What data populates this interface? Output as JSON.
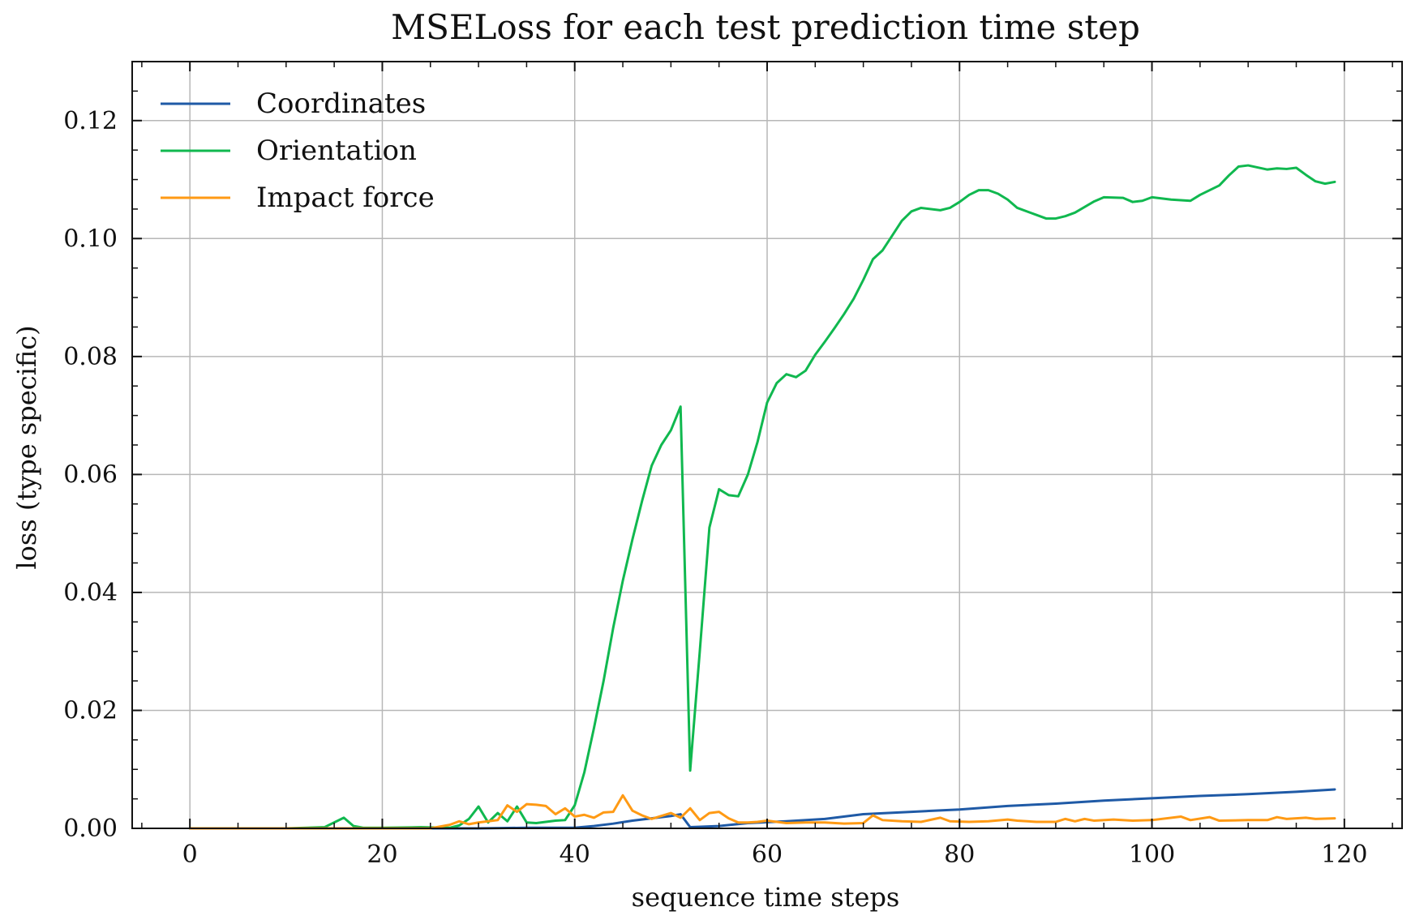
{
  "chart_data": {
    "type": "line",
    "title": "MSELoss for each test prediction time step",
    "xlabel": "sequence time steps",
    "ylabel": "loss (type specific)",
    "xlim": [
      -6,
      126
    ],
    "ylim": [
      0,
      0.13
    ],
    "xticks": [
      0,
      20,
      40,
      60,
      80,
      100,
      120
    ],
    "yticks": [
      0.0,
      0.02,
      0.04,
      0.06,
      0.08,
      0.1,
      0.12
    ],
    "xtick_labels": [
      "0",
      "20",
      "40",
      "60",
      "80",
      "100",
      "120"
    ],
    "ytick_labels": [
      "0.00",
      "0.02",
      "0.04",
      "0.06",
      "0.08",
      "0.10",
      "0.12"
    ],
    "grid": true,
    "legend": "top-left",
    "series": [
      {
        "name": "Coordinates",
        "color": "#1f5aa6",
        "points": [
          [
            0,
            0.0
          ],
          [
            10,
            0.0
          ],
          [
            20,
            0.0
          ],
          [
            30,
            0.0
          ],
          [
            35,
            0.0001
          ],
          [
            40,
            0.0001
          ],
          [
            42,
            0.0004
          ],
          [
            44,
            0.0008
          ],
          [
            46,
            0.0013
          ],
          [
            48,
            0.0017
          ],
          [
            50,
            0.0021
          ],
          [
            51,
            0.0024
          ],
          [
            52,
            0.0002
          ],
          [
            55,
            0.0004
          ],
          [
            58,
            0.0009
          ],
          [
            62,
            0.0012
          ],
          [
            66,
            0.0016
          ],
          [
            70,
            0.0024
          ],
          [
            75,
            0.0028
          ],
          [
            80,
            0.0032
          ],
          [
            85,
            0.0038
          ],
          [
            90,
            0.0042
          ],
          [
            95,
            0.0047
          ],
          [
            100,
            0.0051
          ],
          [
            105,
            0.0055
          ],
          [
            110,
            0.0058
          ],
          [
            115,
            0.0062
          ],
          [
            119,
            0.0066
          ]
        ]
      },
      {
        "name": "Orientation",
        "color": "#10b84f",
        "points": [
          [
            0,
            0.0
          ],
          [
            5,
            0.0
          ],
          [
            10,
            0.0
          ],
          [
            14,
            0.0002
          ],
          [
            16,
            0.0018
          ],
          [
            17,
            0.0004
          ],
          [
            18,
            0.0001
          ],
          [
            20,
            0.0001
          ],
          [
            24,
            0.0002
          ],
          [
            27,
            0.0001
          ],
          [
            28,
            0.0005
          ],
          [
            29,
            0.0016
          ],
          [
            30,
            0.0037
          ],
          [
            31,
            0.001
          ],
          [
            32,
            0.0026
          ],
          [
            33,
            0.0012
          ],
          [
            34,
            0.0037
          ],
          [
            35,
            0.001
          ],
          [
            36,
            0.0009
          ],
          [
            38,
            0.0013
          ],
          [
            39,
            0.0014
          ],
          [
            40,
            0.0039
          ],
          [
            41,
            0.0095
          ],
          [
            42,
            0.017
          ],
          [
            43,
            0.025
          ],
          [
            44,
            0.034
          ],
          [
            45,
            0.042
          ],
          [
            46,
            0.049
          ],
          [
            47,
            0.0555
          ],
          [
            48,
            0.0615
          ],
          [
            49,
            0.065
          ],
          [
            50,
            0.0675
          ],
          [
            51,
            0.0715
          ],
          [
            52,
            0.0098
          ],
          [
            53,
            0.03
          ],
          [
            54,
            0.051
          ],
          [
            55,
            0.0575
          ],
          [
            56,
            0.0565
          ],
          [
            57,
            0.0563
          ],
          [
            58,
            0.06
          ],
          [
            59,
            0.0655
          ],
          [
            60,
            0.0722
          ],
          [
            61,
            0.0755
          ],
          [
            62,
            0.077
          ],
          [
            63,
            0.0765
          ],
          [
            64,
            0.0776
          ],
          [
            65,
            0.0803
          ],
          [
            66,
            0.0825
          ],
          [
            67,
            0.0848
          ],
          [
            68,
            0.0872
          ],
          [
            69,
            0.0898
          ],
          [
            70,
            0.093
          ],
          [
            71,
            0.0965
          ],
          [
            72,
            0.098
          ],
          [
            73,
            0.1005
          ],
          [
            74,
            0.103
          ],
          [
            75,
            0.1046
          ],
          [
            76,
            0.1052
          ],
          [
            78,
            0.1048
          ],
          [
            79,
            0.1052
          ],
          [
            80,
            0.1062
          ],
          [
            81,
            0.1074
          ],
          [
            82,
            0.1082
          ],
          [
            83,
            0.1082
          ],
          [
            84,
            0.1076
          ],
          [
            85,
            0.1066
          ],
          [
            86,
            0.1052
          ],
          [
            88,
            0.104
          ],
          [
            89,
            0.1034
          ],
          [
            90,
            0.1034
          ],
          [
            91,
            0.1038
          ],
          [
            92,
            0.1044
          ],
          [
            94,
            0.1063
          ],
          [
            95,
            0.107
          ],
          [
            97,
            0.1069
          ],
          [
            98,
            0.1062
          ],
          [
            99,
            0.1064
          ],
          [
            100,
            0.107
          ],
          [
            102,
            0.1066
          ],
          [
            104,
            0.1064
          ],
          [
            105,
            0.1074
          ],
          [
            107,
            0.109
          ],
          [
            108,
            0.1107
          ],
          [
            109,
            0.1122
          ],
          [
            110,
            0.1124
          ],
          [
            112,
            0.1117
          ],
          [
            113,
            0.1119
          ],
          [
            114,
            0.1118
          ],
          [
            115,
            0.112
          ],
          [
            116,
            0.1108
          ],
          [
            117,
            0.1097
          ],
          [
            118,
            0.1093
          ],
          [
            119,
            0.1096
          ]
        ]
      },
      {
        "name": "Impact force",
        "color": "#ff9a14",
        "points": [
          [
            0,
            0.0
          ],
          [
            10,
            0.0
          ],
          [
            20,
            0.0
          ],
          [
            25,
            0.0
          ],
          [
            27,
            0.0006
          ],
          [
            28,
            0.0012
          ],
          [
            29,
            0.0007
          ],
          [
            30,
            0.001
          ],
          [
            31,
            0.0012
          ],
          [
            32,
            0.0014
          ],
          [
            33,
            0.0039
          ],
          [
            34,
            0.0028
          ],
          [
            35,
            0.0041
          ],
          [
            36,
            0.004
          ],
          [
            37,
            0.0038
          ],
          [
            38,
            0.0024
          ],
          [
            39,
            0.0034
          ],
          [
            40,
            0.002
          ],
          [
            41,
            0.0023
          ],
          [
            42,
            0.0018
          ],
          [
            43,
            0.0027
          ],
          [
            44,
            0.0028
          ],
          [
            45,
            0.0056
          ],
          [
            46,
            0.003
          ],
          [
            47,
            0.0022
          ],
          [
            48,
            0.0016
          ],
          [
            49,
            0.0021
          ],
          [
            50,
            0.0026
          ],
          [
            51,
            0.0018
          ],
          [
            52,
            0.0034
          ],
          [
            53,
            0.0014
          ],
          [
            54,
            0.0026
          ],
          [
            55,
            0.0028
          ],
          [
            56,
            0.0017
          ],
          [
            57,
            0.001
          ],
          [
            58,
            0.001
          ],
          [
            59,
            0.0011
          ],
          [
            60,
            0.0013
          ],
          [
            62,
            0.0009
          ],
          [
            64,
            0.001
          ],
          [
            66,
            0.001
          ],
          [
            68,
            0.0008
          ],
          [
            70,
            0.0009
          ],
          [
            71,
            0.0022
          ],
          [
            72,
            0.0014
          ],
          [
            74,
            0.0012
          ],
          [
            76,
            0.0011
          ],
          [
            78,
            0.0018
          ],
          [
            79,
            0.0012
          ],
          [
            81,
            0.0011
          ],
          [
            83,
            0.0012
          ],
          [
            85,
            0.0015
          ],
          [
            86,
            0.0013
          ],
          [
            88,
            0.0011
          ],
          [
            90,
            0.0011
          ],
          [
            91,
            0.0016
          ],
          [
            92,
            0.0012
          ],
          [
            93,
            0.0016
          ],
          [
            94,
            0.0013
          ],
          [
            96,
            0.0015
          ],
          [
            98,
            0.0013
          ],
          [
            100,
            0.0014
          ],
          [
            103,
            0.002
          ],
          [
            104,
            0.0014
          ],
          [
            106,
            0.0019
          ],
          [
            107,
            0.0013
          ],
          [
            110,
            0.0014
          ],
          [
            112,
            0.0014
          ],
          [
            113,
            0.0019
          ],
          [
            114,
            0.0016
          ],
          [
            116,
            0.0018
          ],
          [
            117,
            0.0016
          ],
          [
            119,
            0.0017
          ]
        ]
      }
    ]
  }
}
